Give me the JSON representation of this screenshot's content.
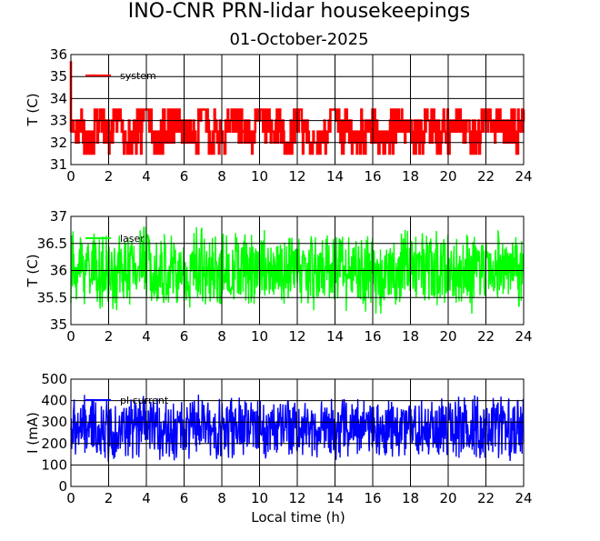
{
  "title": "INO-CNR PRN-lidar housekeepings",
  "subtitle": "01-October-2025",
  "xlabel": "Local time (h)",
  "chart_data": [
    {
      "type": "line",
      "ylabel": "T (C)",
      "xlim": [
        0,
        24
      ],
      "ylim": [
        31,
        36
      ],
      "x_ticks": [
        "0",
        "2",
        "4",
        "6",
        "8",
        "10",
        "12",
        "14",
        "16",
        "18",
        "20",
        "22",
        "24"
      ],
      "y_ticks": [
        "31",
        "32",
        "33",
        "34",
        "35",
        "36"
      ],
      "grid": true,
      "legend": "top-left",
      "series": [
        {
          "name": "system",
          "color": "#ff0000",
          "levels": [
            31.5,
            32,
            32.5,
            33,
            33.5
          ],
          "values": [
            32.5,
            32.5,
            32,
            33,
            32.5,
            33,
            32,
            32.5,
            33.5,
            32,
            32.5,
            33,
            32.5,
            32,
            33.5,
            32.5,
            32,
            33,
            32.5,
            32.5,
            33.5,
            33,
            32.5,
            32,
            33,
            32.5,
            32,
            32.5,
            33.5,
            32.5,
            32,
            32.5,
            33,
            32,
            32.5,
            33,
            32.5,
            32.5,
            33,
            32,
            32.5,
            33,
            32.5,
            32,
            33.5,
            33,
            32.5,
            32.5,
            33
          ]
        }
      ]
    },
    {
      "type": "line",
      "ylabel": "T (C)",
      "xlim": [
        0,
        24
      ],
      "ylim": [
        35,
        37
      ],
      "x_ticks": [
        "0",
        "2",
        "4",
        "6",
        "8",
        "10",
        "12",
        "14",
        "16",
        "18",
        "20",
        "22",
        "24"
      ],
      "y_ticks": [
        "35",
        "35.5",
        "36",
        "36.5",
        "37"
      ],
      "grid": true,
      "legend": "top-left",
      "series": [
        {
          "name": "laser",
          "color": "#00ff00",
          "min": 35.2,
          "max": 36.8,
          "values": [
            36,
            36.1,
            35.9,
            36,
            36.2,
            36,
            35.9,
            36.1,
            36,
            36,
            36.1,
            35.9,
            36,
            36,
            36.1,
            36,
            35.9,
            36,
            36.1,
            36,
            36,
            35.9,
            36,
            36.1,
            36
          ]
        }
      ]
    },
    {
      "type": "line",
      "ylabel": "I (mA)",
      "xlim": [
        0,
        24
      ],
      "ylim": [
        0,
        500
      ],
      "x_ticks": [
        "0",
        "2",
        "4",
        "6",
        "8",
        "10",
        "12",
        "14",
        "16",
        "18",
        "20",
        "22",
        "24"
      ],
      "y_ticks": [
        "0",
        "100",
        "200",
        "300",
        "400",
        "500"
      ],
      "grid": true,
      "legend": "top-left",
      "series": [
        {
          "name": "pl current",
          "color": "#0000ff",
          "min": 115,
          "max": 440,
          "values": [
            270,
            275,
            265,
            270,
            272,
            268,
            270,
            274,
            266,
            270,
            271,
            269,
            270,
            273,
            267,
            270,
            272,
            268,
            270,
            271,
            269,
            270,
            272,
            268,
            270
          ]
        }
      ]
    }
  ]
}
